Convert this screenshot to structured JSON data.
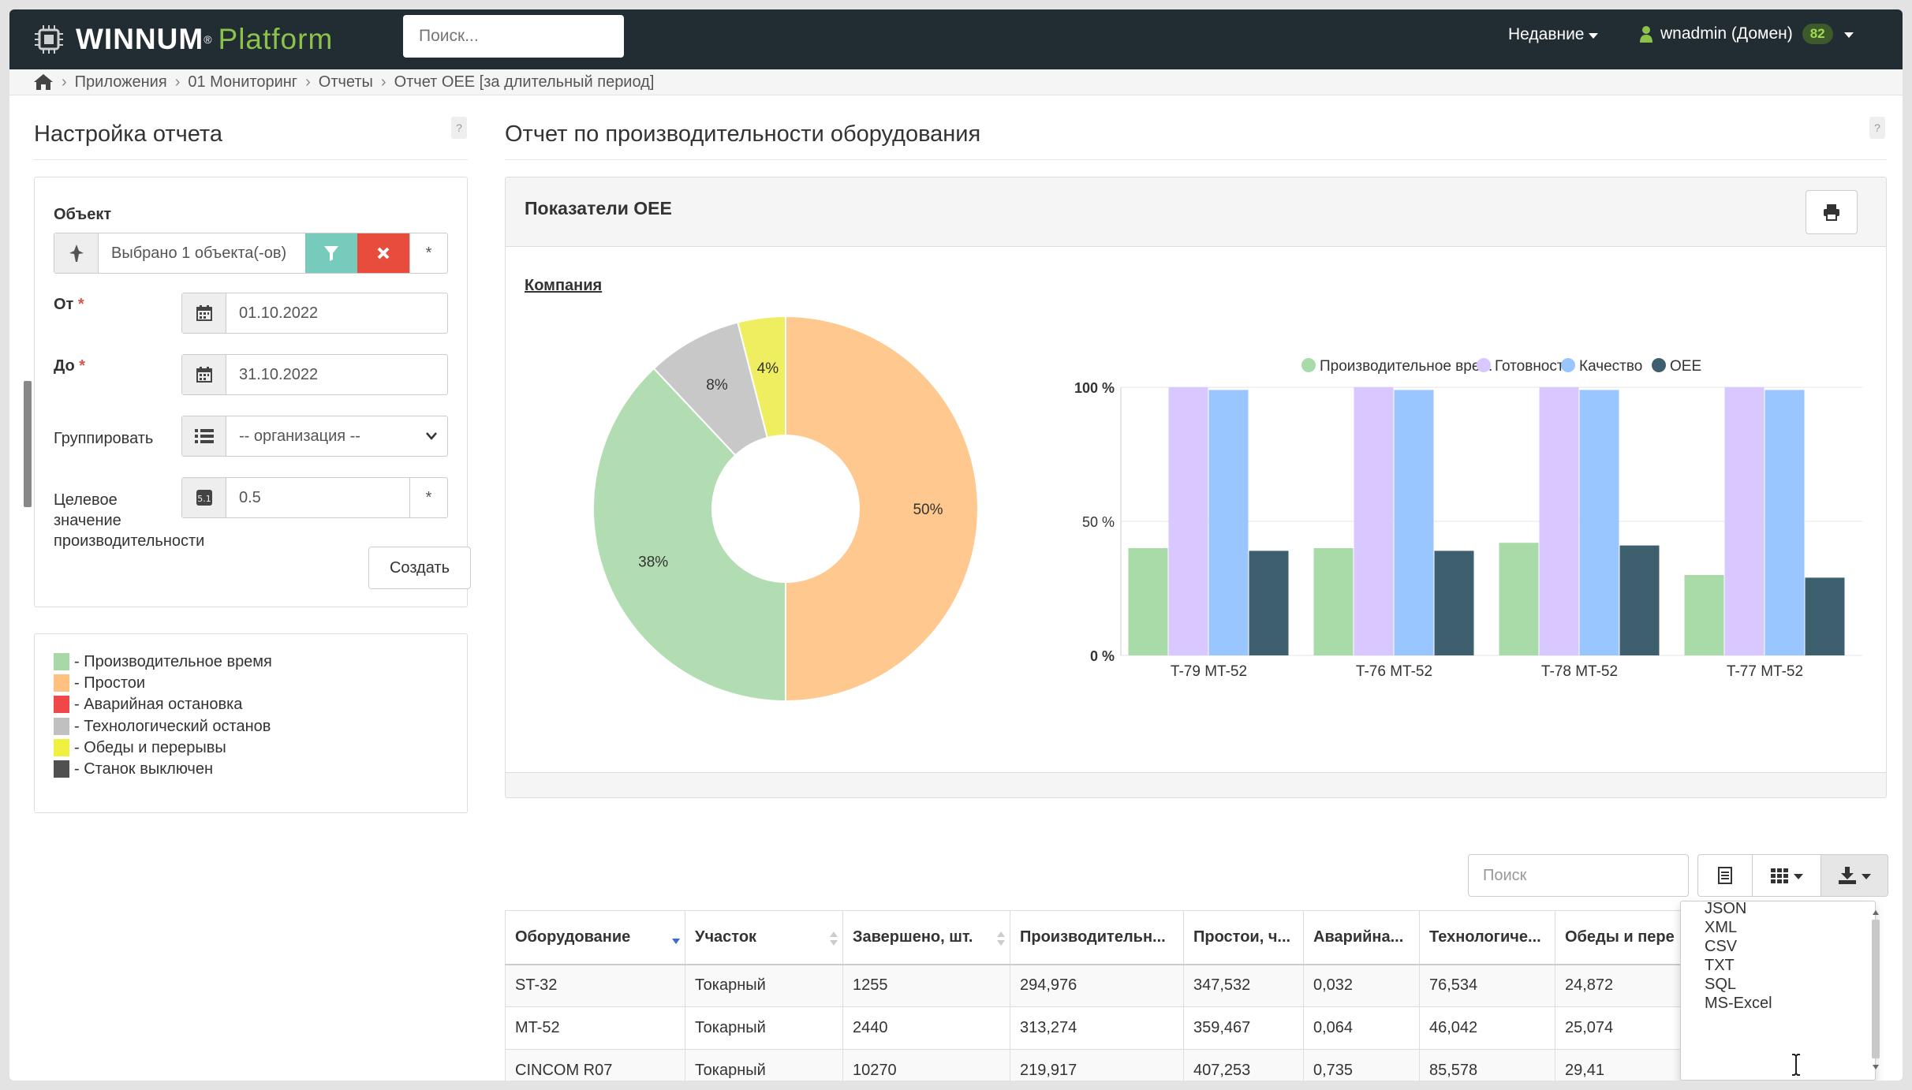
{
  "app": {
    "brand_main": "WINNUM",
    "brand_reg": "®",
    "brand_sub": "Platform",
    "search_placeholder": "Поиск...",
    "recent_label": "Недавние",
    "user_name": "wnadmin (Домен)",
    "user_badge": "82"
  },
  "breadcrumb": [
    "Приложения",
    "01 Мониторинг",
    "Отчеты",
    "Отчет OEE [за длительный период]"
  ],
  "settings": {
    "title": "Настройка отчета",
    "help": "?",
    "object_label": "Объект",
    "object_value": "Выбрано 1 объекта(-ов)",
    "object_star": "*",
    "from_label": "От",
    "from_value": "01.10.2022",
    "to_label": "До",
    "to_value": "31.10.2022",
    "group_label": "Группировать",
    "group_value": "-- организация --",
    "target_label_1": "Целевое",
    "target_label_2": "значение",
    "target_label_3": "производительности",
    "target_value": "0.5",
    "target_star": "*",
    "required_mark": "*",
    "create_label": "Создать"
  },
  "legend": [
    {
      "label": "- Производительное время",
      "color": "#a8d8a8"
    },
    {
      "label": "- Простои",
      "color": "#ffc080"
    },
    {
      "label": "- Аварийная остановка",
      "color": "#f04848"
    },
    {
      "label": "- Технологический останов",
      "color": "#c0c0c0"
    },
    {
      "label": "- Обеды и перерывы",
      "color": "#f0f040"
    },
    {
      "label": "- Станок выключен",
      "color": "#505050"
    }
  ],
  "report": {
    "title": "Отчет по производительности оборудования",
    "help": "?",
    "box_title": "Показатели OEE",
    "company_label": "Компания"
  },
  "chart_data": [
    {
      "type": "pie",
      "donut": true,
      "slices": [
        {
          "label": "Простои",
          "value": 50,
          "display": "50%",
          "color": "#ffc88e"
        },
        {
          "label": "Производительное время",
          "value": 38,
          "display": "38%",
          "color": "#b2ddb2"
        },
        {
          "label": "Технологический останов",
          "value": 8,
          "display": "8%",
          "color": "#c8c8c8"
        },
        {
          "label": "Обеды и перерывы",
          "value": 4,
          "display": "4%",
          "color": "#eeee60"
        }
      ]
    },
    {
      "type": "bar",
      "categories": [
        "T-79 MT-52",
        "T-76 MT-52",
        "T-78 MT-52",
        "T-77 MT-52"
      ],
      "series": [
        {
          "name": "Производительное вре...",
          "color": "#a8dba8",
          "values": [
            40,
            40,
            42,
            30
          ]
        },
        {
          "name": "Готовность",
          "color": "#d9c8ff",
          "values": [
            100,
            100,
            100,
            100
          ]
        },
        {
          "name": "Качество",
          "color": "#99c6ff",
          "values": [
            99,
            99,
            99,
            99
          ]
        },
        {
          "name": "OEE",
          "color": "#3e5f6e",
          "values": [
            39,
            39,
            41,
            29
          ]
        }
      ],
      "yticks": [
        "0 %",
        "50 %",
        "100 %"
      ],
      "ylim": [
        0,
        100
      ],
      "legend_position": "top-right",
      "grid": true
    }
  ],
  "table": {
    "search_placeholder": "Поиск",
    "columns": [
      "Оборудование",
      "Участок",
      "Завершено, шт.",
      "Производительн...",
      "Простои, ч...",
      "Аварийна...",
      "Технологиче...",
      "Обеды и пере"
    ],
    "rows": [
      [
        "ST-32",
        "Токарный",
        "1255",
        "294,976",
        "347,532",
        "0,032",
        "76,534",
        "24,872"
      ],
      [
        "MT-52",
        "Токарный",
        "2440",
        "313,274",
        "359,467",
        "0,064",
        "46,042",
        "25,074"
      ],
      [
        "CINCOM R07",
        "Токарный",
        "10270",
        "219,917",
        "407,253",
        "0,735",
        "85,578",
        "29,41"
      ]
    ]
  },
  "export_menu": [
    "JSON",
    "XML",
    "CSV",
    "TXT",
    "SQL",
    "MS-Excel"
  ]
}
